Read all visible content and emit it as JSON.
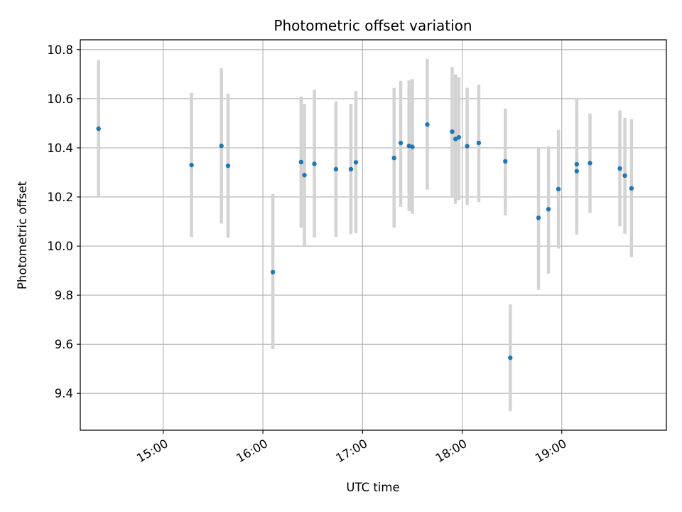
{
  "chart_data": {
    "type": "scatter",
    "title": "Photometric offset variation",
    "xlabel": "UTC time",
    "ylabel": "Photometric offset",
    "x_unit": "UTC time (HH:MM)",
    "xlim": [
      "14:10",
      "20:03"
    ],
    "ylim": [
      9.25,
      10.84
    ],
    "x_ticks": [
      "15:00",
      "16:00",
      "17:00",
      "18:00",
      "19:00"
    ],
    "y_ticks": [
      9.4,
      9.6,
      9.8,
      10.0,
      10.2,
      10.4,
      10.6,
      10.8
    ],
    "y_tick_labels": [
      "9.4",
      "9.6",
      "9.8",
      "10.0",
      "10.2",
      "10.4",
      "10.6",
      "10.8"
    ],
    "grid": true,
    "legend": "none",
    "colors": {
      "point": "#1f77b4",
      "errorbar": "#d3d3d3",
      "grid": "#b0b0b0"
    },
    "series": [
      {
        "points": [
          {
            "t": "14:21",
            "y": 10.478,
            "lo": 10.202,
            "hi": 10.757
          },
          {
            "t": "15:17",
            "y": 10.33,
            "lo": 10.037,
            "hi": 10.624
          },
          {
            "t": "15:35",
            "y": 10.408,
            "lo": 10.092,
            "hi": 10.724
          },
          {
            "t": "15:39",
            "y": 10.327,
            "lo": 10.034,
            "hi": 10.621
          },
          {
            "t": "16:06",
            "y": 9.894,
            "lo": 9.58,
            "hi": 10.212
          },
          {
            "t": "16:23",
            "y": 10.342,
            "lo": 10.075,
            "hi": 10.609
          },
          {
            "t": "16:25",
            "y": 10.289,
            "lo": 10.0,
            "hi": 10.579
          },
          {
            "t": "16:31",
            "y": 10.335,
            "lo": 10.035,
            "hi": 10.637
          },
          {
            "t": "16:44",
            "y": 10.313,
            "lo": 10.037,
            "hi": 10.589
          },
          {
            "t": "16:53",
            "y": 10.313,
            "lo": 10.049,
            "hi": 10.579
          },
          {
            "t": "16:56",
            "y": 10.341,
            "lo": 10.053,
            "hi": 10.632
          },
          {
            "t": "17:19",
            "y": 10.359,
            "lo": 10.075,
            "hi": 10.644
          },
          {
            "t": "17:23",
            "y": 10.42,
            "lo": 10.16,
            "hi": 10.672
          },
          {
            "t": "17:28",
            "y": 10.408,
            "lo": 10.142,
            "hi": 10.675
          },
          {
            "t": "17:30",
            "y": 10.404,
            "lo": 10.132,
            "hi": 10.68
          },
          {
            "t": "17:39",
            "y": 10.495,
            "lo": 10.23,
            "hi": 10.762
          },
          {
            "t": "17:54",
            "y": 10.466,
            "lo": 10.202,
            "hi": 10.729
          },
          {
            "t": "17:56",
            "y": 10.436,
            "lo": 10.172,
            "hi": 10.699
          },
          {
            "t": "17:58",
            "y": 10.443,
            "lo": 10.188,
            "hi": 10.688
          },
          {
            "t": "18:03",
            "y": 10.407,
            "lo": 10.167,
            "hi": 10.645
          },
          {
            "t": "18:10",
            "y": 10.42,
            "lo": 10.18,
            "hi": 10.657
          },
          {
            "t": "18:26",
            "y": 10.345,
            "lo": 10.125,
            "hi": 10.56
          },
          {
            "t": "18:29",
            "y": 9.545,
            "lo": 9.327,
            "hi": 9.762
          },
          {
            "t": "18:46",
            "y": 10.115,
            "lo": 9.822,
            "hi": 10.403
          },
          {
            "t": "18:52",
            "y": 10.15,
            "lo": 9.888,
            "hi": 10.407
          },
          {
            "t": "18:58",
            "y": 10.232,
            "lo": 9.99,
            "hi": 10.473
          },
          {
            "t": "19:09",
            "y": 10.333,
            "lo": 10.067,
            "hi": 10.6
          },
          {
            "t": "19:09",
            "y": 10.305,
            "lo": 10.047,
            "hi": 10.565
          },
          {
            "t": "19:17",
            "y": 10.338,
            "lo": 10.135,
            "hi": 10.54
          },
          {
            "t": "19:35",
            "y": 10.316,
            "lo": 10.08,
            "hi": 10.552
          },
          {
            "t": "19:38",
            "y": 10.287,
            "lo": 10.05,
            "hi": 10.522
          },
          {
            "t": "19:42",
            "y": 10.235,
            "lo": 9.955,
            "hi": 10.517
          }
        ]
      }
    ]
  }
}
